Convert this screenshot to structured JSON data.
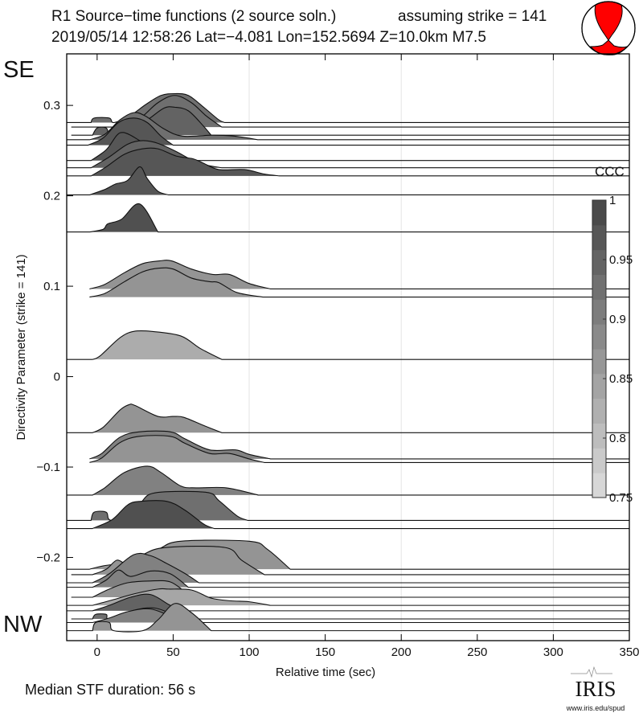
{
  "header": {
    "title_line1": "R1 Source−time functions (2 source soln.)",
    "strike_note": "assuming strike = 141",
    "title_line2": "2019/05/14 12:58:26  Lat=−4.081 Lon=152.5694  Z=10.0km  M7.5"
  },
  "beachball": {
    "icon": "focal-mechanism-beachball",
    "color": "#ff0000"
  },
  "labels": {
    "top_direction": "SE",
    "bottom_direction": "NW",
    "median": "Median STF duration: 56 s"
  },
  "logo": {
    "text": "IRIS",
    "url_text": "www.iris.edu/spud"
  },
  "chart_data": {
    "type": "ridgeline",
    "xlabel": "Relative time (sec)",
    "ylabel": "Directivity Parameter (strike = 141)",
    "xlim": [
      -20,
      350
    ],
    "ylim": [
      -0.292,
      0.357
    ],
    "xticks": [
      0,
      50,
      100,
      150,
      200,
      250,
      300,
      350
    ],
    "xtick_labels": [
      "0",
      "50",
      "100",
      "150",
      "200",
      "250",
      "300",
      "350"
    ],
    "yticks": [
      0.3,
      0.2,
      0.1,
      0,
      -0.1,
      -0.2
    ],
    "ytick_labels": [
      "0.3",
      "0.2",
      "0.1",
      "0",
      "−0.1",
      "−0.2"
    ],
    "grid_x": [
      100,
      200,
      300
    ],
    "colorbar": {
      "label": "CCC",
      "range": [
        0.75,
        1
      ],
      "ticks": [
        1,
        0.95,
        0.9,
        0.85,
        0.8,
        0.75
      ],
      "tick_labels": [
        "1",
        "0.95",
        "0.9",
        "0.85",
        "0.8",
        "0.75"
      ],
      "colors": [
        "#dddddd",
        "#444444"
      ]
    },
    "traces": [
      {
        "directivity": 0.281,
        "ccc": 0.93,
        "start": -20,
        "points": [
          [
            -4,
            0
          ],
          [
            -2,
            0.005
          ],
          [
            8,
            0.005
          ],
          [
            11,
            0
          ],
          [
            22,
            0.008
          ],
          [
            32,
            0.02
          ],
          [
            42,
            0.03
          ],
          [
            51,
            0.032
          ],
          [
            60,
            0.03
          ],
          [
            70,
            0.017
          ],
          [
            80,
            0.003
          ],
          [
            84,
            0
          ]
        ]
      },
      {
        "directivity": 0.276,
        "ccc": 0.93,
        "start": -17,
        "points": [
          [
            20,
            0
          ],
          [
            30,
            0.012
          ],
          [
            40,
            0.027
          ],
          [
            51,
            0.035
          ],
          [
            62,
            0.027
          ],
          [
            72,
            0.012
          ],
          [
            82,
            0
          ]
        ]
      },
      {
        "directivity": 0.267,
        "ccc": 0.95,
        "start": -17,
        "points": [
          [
            -3,
            0
          ],
          [
            0,
            0.008
          ],
          [
            6,
            0.008
          ],
          [
            9,
            0
          ],
          [
            22,
            0.004
          ],
          [
            34,
            0.018
          ],
          [
            44,
            0.03
          ],
          [
            51,
            0.031
          ],
          [
            60,
            0.027
          ],
          [
            70,
            0.01
          ],
          [
            75,
            0
          ]
        ]
      },
      {
        "directivity": 0.262,
        "ccc": 0.93,
        "start": -20,
        "points": [
          [
            -5,
            0
          ],
          [
            5,
            0.006
          ],
          [
            15,
            0.022
          ],
          [
            24,
            0.03
          ],
          [
            32,
            0.026
          ],
          [
            44,
            0.012
          ],
          [
            56,
            0.004
          ],
          [
            75,
            0.005
          ],
          [
            90,
            0.004
          ],
          [
            106,
            0
          ]
        ]
      },
      {
        "directivity": 0.256,
        "ccc": 0.97,
        "start": -20,
        "points": [
          [
            -6,
            0
          ],
          [
            4,
            0.008
          ],
          [
            14,
            0.025
          ],
          [
            24,
            0.03
          ],
          [
            33,
            0.025
          ],
          [
            42,
            0.01
          ],
          [
            50,
            0
          ]
        ]
      },
      {
        "directivity": 0.239,
        "ccc": 0.97,
        "start": -20,
        "points": [
          [
            -4,
            0
          ],
          [
            6,
            0.012
          ],
          [
            13,
            0.028
          ],
          [
            17,
            0.031
          ],
          [
            22,
            0.028
          ],
          [
            28,
            0.022
          ],
          [
            38,
            0.012
          ],
          [
            48,
            0
          ]
        ]
      },
      {
        "directivity": 0.231,
        "ccc": 0.95,
        "start": -20,
        "points": [
          [
            -4,
            0
          ],
          [
            8,
            0.012
          ],
          [
            20,
            0.026
          ],
          [
            30,
            0.03
          ],
          [
            40,
            0.027
          ],
          [
            52,
            0.018
          ],
          [
            63,
            0.008
          ],
          [
            72,
            0.003
          ],
          [
            82,
            0
          ]
        ]
      },
      {
        "directivity": 0.222,
        "ccc": 0.97,
        "start": -20,
        "points": [
          [
            -4,
            0
          ],
          [
            6,
            0.01
          ],
          [
            18,
            0.024
          ],
          [
            30,
            0.03
          ],
          [
            40,
            0.03
          ],
          [
            52,
            0.022
          ],
          [
            63,
            0.019
          ],
          [
            70,
            0.014
          ],
          [
            80,
            0.007
          ],
          [
            97,
            0.007
          ],
          [
            110,
            0.002
          ],
          [
            120,
            0
          ]
        ]
      },
      {
        "directivity": 0.201,
        "ccc": 0.97,
        "start": -20,
        "points": [
          [
            -5,
            0
          ],
          [
            5,
            0.006
          ],
          [
            12,
            0.012
          ],
          [
            20,
            0.016
          ],
          [
            28,
            0.031
          ],
          [
            33,
            0.018
          ],
          [
            40,
            0.004
          ],
          [
            47,
            0
          ]
        ]
      },
      {
        "directivity": 0.16,
        "ccc": 0.98,
        "start": -20,
        "points": [
          [
            -5,
            0
          ],
          [
            4,
            0.003
          ],
          [
            7,
            0.009
          ],
          [
            16,
            0.014
          ],
          [
            28,
            0.031
          ],
          [
            40,
            0
          ]
        ]
      },
      {
        "directivity": 0.097,
        "ccc": 0.87,
        "start": -5,
        "points": [
          [
            -5,
            0
          ],
          [
            5,
            0.005
          ],
          [
            18,
            0.018
          ],
          [
            30,
            0.028
          ],
          [
            41,
            0.031
          ],
          [
            49,
            0.031
          ],
          [
            62,
            0.022
          ],
          [
            76,
            0.016
          ],
          [
            87,
            0.016
          ],
          [
            100,
            0.006
          ],
          [
            114,
            0
          ]
        ]
      },
      {
        "directivity": 0.088,
        "ccc": 0.87,
        "start": -5,
        "points": [
          [
            -5,
            0
          ],
          [
            5,
            0.004
          ],
          [
            18,
            0.017
          ],
          [
            30,
            0.028
          ],
          [
            41,
            0.032
          ],
          [
            50,
            0.031
          ],
          [
            62,
            0.021
          ],
          [
            74,
            0.017
          ],
          [
            80,
            0.016
          ],
          [
            92,
            0.005
          ],
          [
            109,
            0
          ]
        ]
      },
      {
        "directivity": 0.019,
        "ccc": 0.83,
        "start": -20,
        "points": [
          [
            -3,
            0
          ],
          [
            2,
            0.004
          ],
          [
            15,
            0.024
          ],
          [
            24,
            0.031
          ],
          [
            36,
            0.031
          ],
          [
            55,
            0.026
          ],
          [
            68,
            0.012
          ],
          [
            82,
            0
          ]
        ]
      },
      {
        "directivity": -0.062,
        "ccc": 0.87,
        "start": -20,
        "points": [
          [
            -3,
            0
          ],
          [
            4,
            0.006
          ],
          [
            15,
            0.025
          ],
          [
            21,
            0.031
          ],
          [
            25,
            0.03
          ],
          [
            40,
            0.018
          ],
          [
            50,
            0.018
          ],
          [
            57,
            0.017
          ],
          [
            70,
            0.008
          ],
          [
            82,
            0
          ]
        ]
      },
      {
        "directivity": -0.091,
        "ccc": 0.9,
        "start": -5,
        "points": [
          [
            -5,
            0
          ],
          [
            3,
            0.006
          ],
          [
            15,
            0.024
          ],
          [
            28,
            0.03
          ],
          [
            48,
            0.03
          ],
          [
            58,
            0.022
          ],
          [
            74,
            0.01
          ],
          [
            91,
            0.01
          ],
          [
            100,
            0.005
          ],
          [
            114,
            0
          ]
        ]
      },
      {
        "directivity": -0.095,
        "ccc": 0.87,
        "start": -5,
        "points": [
          [
            -5,
            0
          ],
          [
            3,
            0.005
          ],
          [
            15,
            0.022
          ],
          [
            28,
            0.029
          ],
          [
            48,
            0.029
          ],
          [
            58,
            0.021
          ],
          [
            74,
            0.01
          ],
          [
            87,
            0.01
          ],
          [
            100,
            0.004
          ],
          [
            110,
            0
          ]
        ]
      },
      {
        "directivity": -0.131,
        "ccc": 0.9,
        "start": -20,
        "points": [
          [
            -3,
            0
          ],
          [
            5,
            0.008
          ],
          [
            18,
            0.025
          ],
          [
            33,
            0.032
          ],
          [
            42,
            0.025
          ],
          [
            55,
            0.01
          ],
          [
            65,
            0.008
          ],
          [
            85,
            0.008
          ],
          [
            106,
            0
          ]
        ]
      },
      {
        "directivity": -0.159,
        "ccc": 0.93,
        "start": -20,
        "points": [
          [
            -4,
            0
          ],
          [
            -2,
            0.009
          ],
          [
            6,
            0.009
          ],
          [
            9,
            0
          ],
          [
            25,
            0
          ],
          [
            30,
            0.022
          ],
          [
            40,
            0.031
          ],
          [
            72,
            0.031
          ],
          [
            80,
            0.022
          ],
          [
            92,
            0.005
          ],
          [
            99,
            0
          ]
        ]
      },
      {
        "directivity": -0.168,
        "ccc": 0.98,
        "start": -20,
        "points": [
          [
            -3,
            0
          ],
          [
            10,
            0.01
          ],
          [
            20,
            0.026
          ],
          [
            28,
            0.03
          ],
          [
            46,
            0.03
          ],
          [
            58,
            0.02
          ],
          [
            70,
            0.005
          ],
          [
            77,
            0
          ]
        ]
      },
      {
        "directivity": -0.213,
        "ccc": 0.87,
        "start": -20,
        "points": [
          [
            -5,
            0
          ],
          [
            5,
            0.004
          ],
          [
            20,
            0.008
          ],
          [
            40,
            0.022
          ],
          [
            55,
            0.031
          ],
          [
            100,
            0.031
          ],
          [
            112,
            0.022
          ],
          [
            127,
            0
          ]
        ]
      },
      {
        "directivity": -0.219,
        "ccc": 0.87,
        "start": -17,
        "points": [
          [
            -3,
            0
          ],
          [
            6,
            0.006
          ],
          [
            13,
            0.016
          ],
          [
            20,
            0.012
          ],
          [
            30,
            0.022
          ],
          [
            45,
            0.03
          ],
          [
            84,
            0.03
          ],
          [
            95,
            0.016
          ],
          [
            110,
            0
          ]
        ]
      },
      {
        "directivity": -0.228,
        "ccc": 0.9,
        "start": -20,
        "points": [
          [
            -3,
            0
          ],
          [
            8,
            0.01
          ],
          [
            24,
            0.031
          ],
          [
            35,
            0.03
          ],
          [
            45,
            0.022
          ],
          [
            58,
            0.01
          ],
          [
            67,
            0
          ]
        ]
      },
      {
        "directivity": -0.233,
        "ccc": 0.9,
        "start": -20,
        "points": [
          [
            -3,
            0
          ],
          [
            6,
            0.008
          ],
          [
            14,
            0.019
          ],
          [
            22,
            0.012
          ],
          [
            35,
            0.018
          ],
          [
            48,
            0.015
          ],
          [
            60,
            0
          ]
        ]
      },
      {
        "directivity": -0.244,
        "ccc": 0.87,
        "start": -17,
        "points": [
          [
            -3,
            0
          ],
          [
            8,
            0.009
          ],
          [
            20,
            0.016
          ],
          [
            35,
            0.018
          ],
          [
            48,
            0.017
          ],
          [
            58,
            0.006
          ],
          [
            65,
            0
          ]
        ]
      },
      {
        "directivity": -0.253,
        "ccc": 0.84,
        "start": -20,
        "points": [
          [
            -3,
            0
          ],
          [
            10,
            0.006
          ],
          [
            25,
            0.013
          ],
          [
            40,
            0.018
          ],
          [
            47,
            0.018
          ],
          [
            62,
            0.017
          ],
          [
            75,
            0.008
          ],
          [
            88,
            0.005
          ],
          [
            100,
            0.004
          ],
          [
            114,
            0
          ]
        ]
      },
      {
        "directivity": -0.259,
        "ccc": 0.95,
        "start": -20,
        "points": [
          [
            -3,
            0
          ],
          [
            8,
            0.006
          ],
          [
            22,
            0.015
          ],
          [
            35,
            0.018
          ],
          [
            47,
            0.007
          ],
          [
            55,
            0
          ]
        ]
      },
      {
        "directivity": -0.268,
        "ccc": 0.93,
        "start": -17,
        "points": [
          [
            -3,
            0
          ],
          [
            -1,
            0.005
          ],
          [
            6,
            0.005
          ],
          [
            8,
            0
          ],
          [
            25,
            0.01
          ],
          [
            38,
            0.012
          ],
          [
            50,
            0.005
          ],
          [
            58,
            0
          ]
        ]
      },
      {
        "directivity": -0.272,
        "ccc": 0.9,
        "start": -20,
        "points": [
          [
            -3,
            0
          ],
          [
            8,
            0.005
          ],
          [
            20,
            0.012
          ],
          [
            35,
            0.015
          ],
          [
            50,
            0.006
          ],
          [
            60,
            0
          ]
        ]
      },
      {
        "directivity": -0.281,
        "ccc": 0.87,
        "start": -20,
        "points": [
          [
            -3,
            0
          ],
          [
            -1,
            0.009
          ],
          [
            8,
            0.009
          ],
          [
            11,
            0
          ],
          [
            30,
            0
          ],
          [
            40,
            0.012
          ],
          [
            51,
            0.03
          ],
          [
            62,
            0.02
          ],
          [
            72,
            0.005
          ],
          [
            75,
            0
          ]
        ]
      }
    ]
  }
}
